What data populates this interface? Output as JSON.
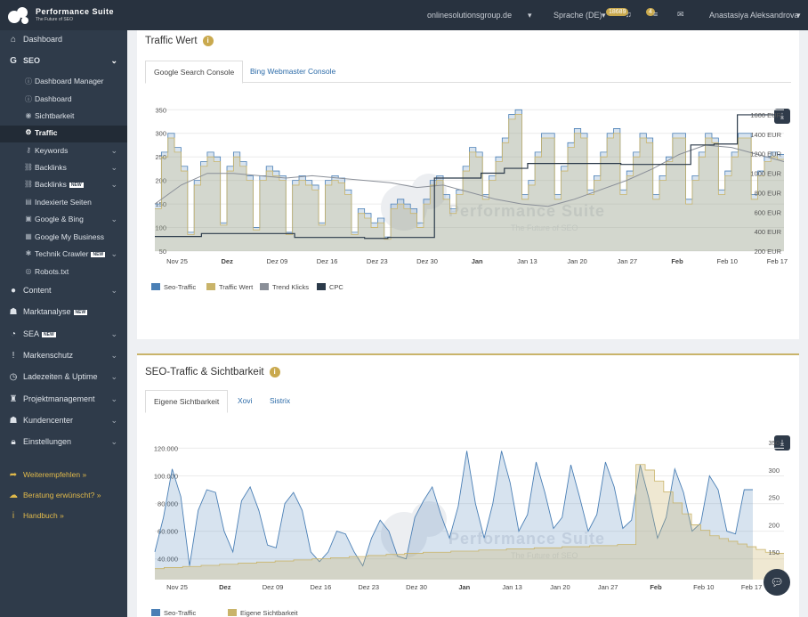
{
  "brand": {
    "title": "Performance Suite",
    "subtitle": "The Future of SEO"
  },
  "topbar": {
    "domain": "onlinesolutionsgroup.de",
    "language": "Sprache (DE)",
    "badge_count": "18689",
    "notif_count": "4",
    "user": "Anastasiya Aleksandrova"
  },
  "sidebar": {
    "items": [
      {
        "label": "Dashboard",
        "icon": "home-icon"
      },
      {
        "label": "SEO",
        "icon": "google-icon"
      },
      {
        "label": "Dashboard Manager",
        "icon": "info-icon"
      },
      {
        "label": "Dashboard",
        "icon": "info-icon"
      },
      {
        "label": "Sichtbarkeit",
        "icon": "eye-icon"
      },
      {
        "label": "Traffic",
        "icon": "traffic-icon"
      },
      {
        "label": "Keywords",
        "icon": "key-icon"
      },
      {
        "label": "Backlinks",
        "icon": "link-icon"
      },
      {
        "label": "Backlinks",
        "icon": "link-icon",
        "tag": "NEW"
      },
      {
        "label": "Indexierte Seiten",
        "icon": "pages-icon"
      },
      {
        "label": "Google & Bing",
        "icon": "bing-icon"
      },
      {
        "label": "Google My Business",
        "icon": "business-icon"
      },
      {
        "label": "Technik Crawler",
        "icon": "crawler-icon",
        "tag": "NEW"
      },
      {
        "label": "Robots.txt",
        "icon": "robot-icon"
      },
      {
        "label": "Content",
        "icon": "content-icon"
      },
      {
        "label": "Marktanalyse",
        "icon": "users-icon",
        "tag": "NEW"
      },
      {
        "label": "SEA",
        "icon": "sea-icon",
        "tag": "NEW"
      },
      {
        "label": "Markenschutz",
        "icon": "exclamation-icon"
      },
      {
        "label": "Ladezeiten & Uptime",
        "icon": "clock-icon"
      },
      {
        "label": "Projektmanagement",
        "icon": "project-icon"
      },
      {
        "label": "Kundencenter",
        "icon": "users-icon"
      },
      {
        "label": "Einstellungen",
        "icon": "lock-icon"
      },
      {
        "label": "Weiterempfehlen »",
        "icon": "share-icon"
      },
      {
        "label": "Beratung erwünscht? »",
        "icon": "chat-icon"
      },
      {
        "label": "Handbuch »",
        "icon": "info-icon"
      }
    ]
  },
  "panel1": {
    "title": "Traffic Wert",
    "tabs": [
      "Google Search Console",
      "Bing Webmaster Console"
    ],
    "legend": [
      "Seo-Traffic",
      "Traffic Wert",
      "Trend Klicks",
      "CPC"
    ],
    "watermark": {
      "title": "Performance Suite",
      "subtitle": "The Future of SEO"
    }
  },
  "panel2": {
    "title": "SEO-Traffic & Sichtbarkeit",
    "tabs": [
      "Eigene Sichtbarkeit",
      "Xovi",
      "Sistrix"
    ],
    "legend": [
      "Seo-Traffic",
      "Eigene Sichtbarkeit"
    ],
    "watermark": {
      "title": "Performance Suite",
      "subtitle": "The Future of SEO"
    }
  },
  "chart_data": [
    {
      "type": "area",
      "title": "",
      "x_ticks": [
        "Nov 25",
        "Dez",
        "Dez 09",
        "Dez 16",
        "Dez 23",
        "Dez 30",
        "Jan",
        "Jan 13",
        "Jan 20",
        "Jan 27",
        "Feb",
        "Feb 10",
        "Feb 17"
      ],
      "y_ticks": [
        "50",
        "100",
        "150",
        "200",
        "250",
        "300",
        "350"
      ],
      "y2_ticks": [
        "200 EUR",
        "400 EUR",
        "600 EUR",
        "800 EUR",
        "1000 EUR",
        "1200 EUR",
        "1400 EUR",
        "1600 EUR"
      ],
      "ylim": [
        50,
        360
      ],
      "y2lim": [
        200,
        1700
      ],
      "colors": {
        "seo_traffic": "#4a7fb5",
        "traffic_wert": "#c9b46a",
        "trend": "#8a8f98",
        "cpc": "#2b3a4a"
      },
      "series": [
        {
          "name": "Seo-Traffic",
          "values": [
            150,
            260,
            300,
            270,
            230,
            90,
            200,
            240,
            260,
            250,
            110,
            230,
            260,
            240,
            210,
            100,
            210,
            230,
            220,
            210,
            90,
            200,
            210,
            200,
            190,
            110,
            200,
            210,
            205,
            180,
            90,
            140,
            130,
            110,
            120,
            80,
            150,
            160,
            150,
            140,
            110,
            160,
            200,
            210,
            170,
            140,
            180,
            230,
            270,
            260,
            170,
            210,
            250,
            290,
            340,
            350,
            170,
            200,
            260,
            300,
            300,
            170,
            230,
            280,
            310,
            300,
            180,
            210,
            260,
            300,
            310,
            180,
            220,
            260,
            300,
            290,
            170,
            210,
            250,
            300,
            300,
            160,
            210,
            260,
            300,
            290,
            180,
            220,
            260,
            300,
            300,
            170,
            220,
            250,
            260,
            255
          ]
        },
        {
          "name": "Traffic Wert",
          "values": [
            140,
            250,
            290,
            260,
            220,
            85,
            190,
            230,
            250,
            240,
            105,
            220,
            250,
            230,
            200,
            95,
            200,
            220,
            210,
            200,
            85,
            190,
            200,
            190,
            180,
            105,
            190,
            200,
            195,
            170,
            85,
            130,
            120,
            100,
            110,
            75,
            140,
            150,
            140,
            130,
            100,
            150,
            190,
            200,
            160,
            130,
            170,
            220,
            260,
            250,
            160,
            200,
            240,
            280,
            330,
            340,
            160,
            190,
            250,
            290,
            290,
            160,
            220,
            270,
            300,
            290,
            170,
            200,
            250,
            290,
            300,
            170,
            210,
            250,
            290,
            280,
            160,
            200,
            240,
            290,
            290,
            150,
            200,
            250,
            290,
            280,
            170,
            210,
            250,
            290,
            290,
            160,
            210,
            240,
            250,
            245
          ]
        },
        {
          "name": "Trend Klicks",
          "values": [
            150,
            190,
            215,
            215,
            210,
            205,
            210,
            205,
            200,
            195,
            185,
            190,
            175,
            160,
            150,
            145,
            160,
            180,
            200,
            225,
            255,
            275,
            270,
            255,
            240
          ]
        },
        {
          "name": "CPC",
          "values": [
            350,
            350,
            380,
            380,
            380,
            380,
            340,
            340,
            340,
            330,
            340,
            340,
            950,
            950,
            1000,
            1050,
            1100,
            1100,
            1100,
            1100,
            1090,
            1090,
            1090,
            1290,
            1300,
            1600,
            1600
          ]
        }
      ]
    },
    {
      "type": "area",
      "title": "",
      "x_ticks": [
        "Nov 25",
        "Dez",
        "Dez 09",
        "Dez 16",
        "Dez 23",
        "Dez 30",
        "Jan",
        "Jan 13",
        "Jan 20",
        "Jan 27",
        "Feb",
        "Feb 10",
        "Feb 17"
      ],
      "y_ticks": [
        "40.000",
        "60.000",
        "80.000",
        "100.000",
        "120.000"
      ],
      "y2_ticks": [
        "150",
        "200",
        "250",
        "300",
        "350"
      ],
      "ylim": [
        25000,
        128000
      ],
      "y2lim": [
        100,
        360
      ],
      "colors": {
        "seo_traffic": "#4a7fb5",
        "eigene_sichtbarkeit": "#c9b46a"
      },
      "series": [
        {
          "name": "Seo-Traffic",
          "values": [
            45000,
            70000,
            105000,
            85000,
            35000,
            75000,
            90000,
            88000,
            60000,
            45000,
            82000,
            92000,
            75000,
            50000,
            48000,
            80000,
            88000,
            75000,
            45000,
            38000,
            45000,
            60000,
            58000,
            45000,
            35000,
            55000,
            68000,
            60000,
            42000,
            40000,
            70000,
            82000,
            92000,
            72000,
            55000,
            78000,
            118000,
            80000,
            55000,
            80000,
            118000,
            95000,
            60000,
            72000,
            110000,
            88000,
            62000,
            70000,
            108000,
            85000,
            60000,
            72000,
            110000,
            92000,
            62000,
            68000,
            108000,
            84000,
            55000,
            70000,
            105000,
            88000,
            60000,
            66000,
            100000,
            90000,
            60000,
            58000,
            90000,
            90000
          ]
        },
        {
          "name": "Eigene Sichtbarkeit",
          "values": [
            120,
            122,
            122,
            124,
            124,
            126,
            126,
            128,
            128,
            130,
            130,
            132,
            132,
            134,
            134,
            136,
            136,
            138,
            138,
            140,
            140,
            142,
            142,
            144,
            144,
            146,
            146,
            148,
            148,
            150,
            150,
            150,
            152,
            152,
            152,
            154,
            154,
            154,
            156,
            156,
            156,
            158,
            158,
            158,
            160,
            160,
            160,
            162,
            162,
            162,
            164,
            164,
            310,
            300,
            280,
            260,
            240,
            220,
            200,
            190,
            180,
            175,
            170,
            165,
            160,
            155,
            150,
            148
          ]
        }
      ]
    }
  ]
}
